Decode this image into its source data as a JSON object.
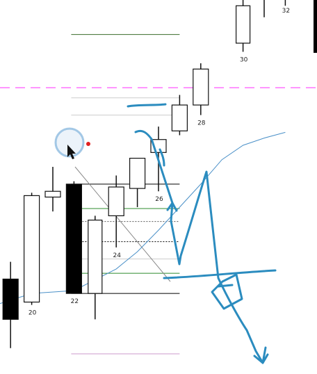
{
  "chart_data": {
    "type": "candlestick",
    "x_tick_labels": [
      "20",
      "22",
      "24",
      "26",
      "28",
      "30",
      "32"
    ],
    "candles": [
      {
        "bar": 19,
        "open": 6.6,
        "high": 7.8,
        "low": 1.8,
        "close": 3.8
      },
      {
        "bar": 20,
        "open": 5.0,
        "high": 12.6,
        "low": 4.8,
        "close": 12.4
      },
      {
        "bar": 21,
        "open": 12.3,
        "high": 14.4,
        "low": 11.3,
        "close": 12.7
      },
      {
        "bar": 22,
        "open": 13.2,
        "high": 13.4,
        "low": 5.6,
        "close": 5.6
      },
      {
        "bar": 23,
        "open": 5.6,
        "high": 11.0,
        "low": 3.8,
        "close": 10.7
      },
      {
        "bar": 24,
        "open": 11.0,
        "high": 13.8,
        "low": 8.8,
        "close": 13.0
      },
      {
        "bar": 25,
        "open": 12.9,
        "high": 15.0,
        "low": 11.6,
        "close": 15.0
      },
      {
        "bar": 26,
        "open": 15.4,
        "high": 17.2,
        "low": 12.7,
        "close": 16.3
      },
      {
        "bar": 27,
        "open": 16.9,
        "high": 19.4,
        "low": 16.6,
        "close": 18.7
      },
      {
        "bar": 28,
        "open": 18.7,
        "high": 21.6,
        "low": 18.0,
        "close": 21.2
      },
      {
        "bar": 30,
        "open": 23.0,
        "high": 26.0,
        "low": 22.4,
        "close": 25.6
      },
      {
        "bar": 31,
        "open": null,
        "high": 26.0,
        "low": 24.8,
        "close": null
      },
      {
        "bar": 32,
        "open": null,
        "high": 26.0,
        "low": 25.6,
        "close": null
      }
    ],
    "moving_average": {
      "color": "#4a90c8",
      "points": [
        [
          18.5,
          4.9
        ],
        [
          20,
          5.6
        ],
        [
          22,
          5.8
        ],
        [
          24,
          7.3
        ],
        [
          25,
          8.5
        ],
        [
          26,
          10.0
        ],
        [
          27,
          11.6
        ],
        [
          28,
          13.2
        ],
        [
          29,
          14.9
        ],
        [
          30,
          15.9
        ],
        [
          31,
          16.4
        ],
        [
          32,
          16.8
        ]
      ]
    },
    "horizontal_lines": [
      {
        "y": 23.6,
        "color": "#3a6b2a",
        "style": "solid",
        "x_range": [
          22,
          27
        ]
      },
      {
        "y": 19.9,
        "color": "#ff66ff",
        "style": "dashed"
      },
      {
        "y": 19.2,
        "color": "#cccccc",
        "style": "solid",
        "x_range": [
          22,
          27
        ]
      },
      {
        "y": 18.0,
        "color": "#cccccc",
        "style": "solid",
        "x_range": [
          22,
          27
        ]
      },
      {
        "y": 13.2,
        "color": "#000000",
        "style": "solid",
        "x_range": [
          22,
          27
        ]
      },
      {
        "y": 11.5,
        "color": "#2e8b2e",
        "style": "solid",
        "x_range": [
          22,
          27
        ]
      },
      {
        "y": 10.6,
        "color": "#555555",
        "style": "dotted",
        "x_range": [
          22,
          27
        ]
      },
      {
        "y": 9.2,
        "color": "#000000",
        "style": "dotted",
        "x_range": [
          22,
          27
        ]
      },
      {
        "y": 8.0,
        "color": "#cccccc",
        "style": "solid",
        "x_range": [
          22,
          27
        ]
      },
      {
        "y": 7.0,
        "color": "#2e8b2e",
        "style": "solid",
        "x_range": [
          22,
          27
        ]
      },
      {
        "y": 5.6,
        "color": "#000000",
        "style": "solid",
        "x_range": [
          22,
          27
        ]
      },
      {
        "y": 1.4,
        "color": "#cc99cc",
        "style": "solid",
        "x_range": [
          22,
          27
        ]
      }
    ],
    "annotations": {
      "drawing_color": "#2b8cbf",
      "cursor_color": "#e02020"
    },
    "xlim": [
      18.5,
      33.5
    ],
    "ylim": [
      0,
      26
    ],
    "grid": false,
    "legend": "none"
  }
}
